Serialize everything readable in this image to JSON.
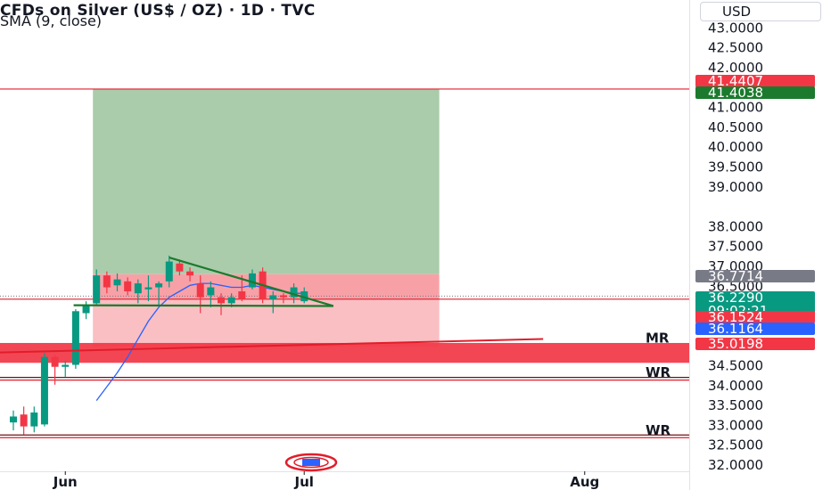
{
  "header": {
    "title": "CFDs on Silver (US$ / OZ) · 1D · TVC",
    "indicator": "SMA (9, close)",
    "currency": "USD"
  },
  "colors": {
    "up": "#089981",
    "down": "#f23645",
    "sma": "#2962ff",
    "profit_zone": "#a5c9a7",
    "loss_zone": "#f9b8bd",
    "support_zone": "#f23645",
    "trendline": "#1b7a2e",
    "red_line": "#e21d2a"
  },
  "chart_data": {
    "type": "candlestick",
    "symbol": "CFDs on Silver (US$ / OZ)",
    "timeframe": "1D",
    "yticks": [
      "43.0000",
      "42.5000",
      "42.0000",
      "41.0000",
      "40.5000",
      "40.0000",
      "39.5000",
      "39.0000",
      "38.0000",
      "37.5000",
      "37.0000",
      "36.5000",
      "34.5000",
      "34.0000",
      "33.5000",
      "33.0000",
      "32.5000",
      "32.0000"
    ],
    "ylim": [
      31.9,
      43.3
    ],
    "xticks": [
      {
        "label": "Jun",
        "at": 5
      },
      {
        "label": "Jul",
        "at": 28
      },
      {
        "label": "Aug",
        "at": 55
      }
    ],
    "candles": [
      {
        "o": 33.05,
        "h": 33.35,
        "l": 32.85,
        "c": 33.2
      },
      {
        "o": 33.25,
        "h": 33.45,
        "l": 32.75,
        "c": 32.95
      },
      {
        "o": 32.95,
        "h": 33.45,
        "l": 32.8,
        "c": 33.3
      },
      {
        "o": 33.0,
        "h": 34.8,
        "l": 32.95,
        "c": 34.7
      },
      {
        "o": 34.7,
        "h": 34.75,
        "l": 34.0,
        "c": 34.45
      },
      {
        "o": 34.45,
        "h": 34.6,
        "l": 34.2,
        "c": 34.5
      },
      {
        "o": 34.5,
        "h": 35.9,
        "l": 34.4,
        "c": 35.85
      },
      {
        "o": 35.8,
        "h": 36.1,
        "l": 35.65,
        "c": 36.0
      },
      {
        "o": 36.05,
        "h": 36.9,
        "l": 36.0,
        "c": 36.75
      },
      {
        "o": 36.75,
        "h": 36.85,
        "l": 36.3,
        "c": 36.45
      },
      {
        "o": 36.5,
        "h": 36.8,
        "l": 36.35,
        "c": 36.65
      },
      {
        "o": 36.6,
        "h": 36.7,
        "l": 36.25,
        "c": 36.35
      },
      {
        "o": 36.3,
        "h": 36.65,
        "l": 36.05,
        "c": 36.55
      },
      {
        "o": 36.4,
        "h": 36.75,
        "l": 36.1,
        "c": 36.45
      },
      {
        "o": 36.45,
        "h": 36.6,
        "l": 36.0,
        "c": 36.55
      },
      {
        "o": 36.6,
        "h": 37.25,
        "l": 36.45,
        "c": 37.1
      },
      {
        "o": 37.05,
        "h": 37.15,
        "l": 36.75,
        "c": 36.85
      },
      {
        "o": 36.85,
        "h": 36.95,
        "l": 36.6,
        "c": 36.75
      },
      {
        "o": 36.55,
        "h": 36.75,
        "l": 35.8,
        "c": 36.2
      },
      {
        "o": 36.25,
        "h": 36.6,
        "l": 35.95,
        "c": 36.45
      },
      {
        "o": 36.2,
        "h": 36.3,
        "l": 35.75,
        "c": 36.05
      },
      {
        "o": 36.05,
        "h": 36.3,
        "l": 35.95,
        "c": 36.2
      },
      {
        "o": 36.35,
        "h": 36.75,
        "l": 36.1,
        "c": 36.15
      },
      {
        "o": 36.45,
        "h": 36.9,
        "l": 36.4,
        "c": 36.8
      },
      {
        "o": 36.85,
        "h": 36.95,
        "l": 36.05,
        "c": 36.15
      },
      {
        "o": 36.15,
        "h": 36.35,
        "l": 35.8,
        "c": 36.25
      },
      {
        "o": 36.25,
        "h": 36.3,
        "l": 36.05,
        "c": 36.2
      },
      {
        "o": 36.2,
        "h": 36.55,
        "l": 36.05,
        "c": 36.45
      },
      {
        "o": 36.1,
        "h": 36.45,
        "l": 36.05,
        "c": 36.35
      }
    ],
    "sma": [
      null,
      null,
      null,
      null,
      null,
      null,
      null,
      null,
      33.6,
      33.95,
      34.3,
      34.7,
      35.15,
      35.6,
      35.95,
      36.2,
      36.35,
      36.5,
      36.55,
      36.55,
      36.5,
      36.45,
      36.45,
      36.5,
      36.45,
      36.4,
      36.35,
      36.3,
      36.3
    ],
    "position": {
      "start_candle": 8,
      "end_candle": 41,
      "entry": 36.1524,
      "target": 41.4407,
      "stop": 34.95,
      "entry_top": 36.78
    },
    "trendlines": [
      {
        "name": "descending",
        "x1": 15.0,
        "y1": 37.2,
        "x2": 30.8,
        "y2": 35.98
      },
      {
        "name": "base",
        "x1": 5.8,
        "y1": 36.0,
        "x2": 30.8,
        "y2": 35.98
      },
      {
        "name": "red",
        "x1": -3,
        "y1": 34.8,
        "x2": 51,
        "y2": 35.15
      }
    ],
    "levels": [
      {
        "label": "MR",
        "value": 35.0198
      },
      {
        "label": "WR",
        "value": 34.15
      },
      {
        "label": "WR",
        "value": 32.7
      }
    ],
    "zones": [
      {
        "name": "support-zone",
        "from": 34.55,
        "to": 35.05
      }
    ],
    "horizontal_lines": [
      41.4407,
      36.1524
    ],
    "current_price": 36.229,
    "price_labels": [
      {
        "text": "41.4407",
        "value": 41.4407,
        "kind": "red"
      },
      {
        "text": "41.4038",
        "value": 41.4038,
        "kind": "green"
      },
      {
        "text": "36.7714",
        "value": 36.7714,
        "kind": "gray"
      },
      {
        "text": "36.2290",
        "value": 36.229,
        "kind": "teal",
        "sub": "09:02:21"
      },
      {
        "text": "36.1524",
        "value": 36.1524,
        "kind": "red"
      },
      {
        "text": "36.1164",
        "value": 36.1164,
        "kind": "blue"
      },
      {
        "text": "35.0198",
        "value": 35.0198,
        "kind": "red"
      }
    ]
  }
}
